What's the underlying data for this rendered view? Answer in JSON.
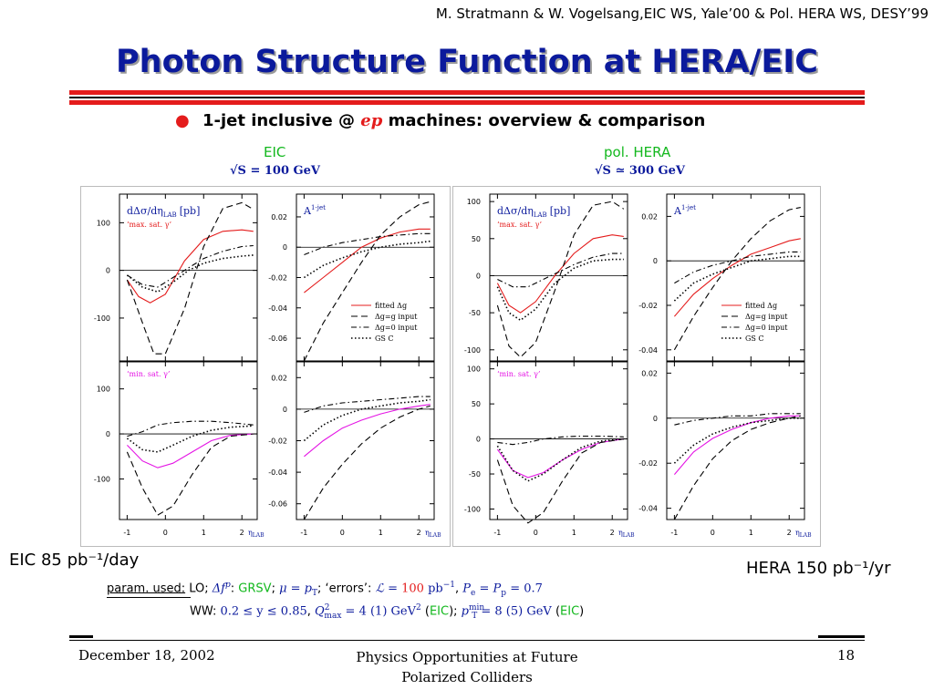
{
  "header": {
    "credit": "M. Stratmann & W. Vogelsang,EIC WS, Yale’00 & Pol. HERA WS, DESY’99",
    "title": "Photon Structure Function at HERA/EIC"
  },
  "bullet": {
    "prefix": "1-jet inclusive @",
    "ep": "ep",
    "suffix": "machines:",
    "rest_a": "overview",
    "amp": "&",
    "rest_b": "comparison"
  },
  "colors": {
    "title_blue": "#0b1a9c",
    "red": "#e41c1c",
    "green": "#13b81e",
    "magenta": "#e413e4"
  },
  "sections": {
    "eic": {
      "label": "EIC",
      "energy": "√S = 100 GeV",
      "lumi": "EIC 85 pb⁻¹/day"
    },
    "hera": {
      "label": "pol. HERA",
      "energy": "√S ≃ 300 GeV",
      "lumi": "HERA 150 pb⁻¹/yr"
    }
  },
  "params": {
    "label": "param. used:",
    "line1_lo": "LO;",
    "line1_df": "Δf",
    "line1_dfsup": "p",
    "line1_df_colon": ":",
    "line1_grsv": "GRSV",
    "line1_mu": "μ = p",
    "line1_mu_sub": "T",
    "line1_errors": "‘errors’:",
    "line1_L": "ℒ =",
    "line1_Lval": "100",
    "line1_Lunit": "pb",
    "line1_Lexp": "−1",
    "line1_P": "P",
    "line1_P_sub_e": "e",
    "line1_P_eq": "= P",
    "line1_P_sub_p": "p",
    "line1_P_val": "= 0.7",
    "line2_ww": "WW:",
    "line2_y": "0.2 ≤ y ≤ 0.85",
    "line2_Q": "Q",
    "line2_Qsup": "2",
    "line2_Qsub": "max",
    "line2_Qval": "= 4 (1) GeV",
    "line2_Qunitsup": "2",
    "line2_eic1": "EIC",
    "line2_pt": "p",
    "line2_ptsup": "min",
    "line2_ptsub": "T",
    "line2_ptval": "= 8 (5) GeV",
    "line2_eic2": "EIC"
  },
  "footer": {
    "date": "December 18, 2002",
    "talk_line1": "Physics Opportunities at Future",
    "talk_line2": "Polarized Colliders",
    "page": "18"
  },
  "chart_data": [
    {
      "type": "line",
      "id": "eic-xsec-max",
      "label": "dΔσ/dη",
      "label_sub": "LAB",
      "label_unit": "[pb]",
      "subset": "‘max. sat. γ’",
      "xlim": [
        -1.2,
        2.4
      ],
      "ylim": [
        -190,
        160
      ],
      "yticks": [
        -100,
        0,
        100
      ],
      "xticks": [
        -1,
        0,
        1,
        2
      ],
      "series": [
        {
          "style": "solid",
          "color": "#e41c1c",
          "x": [
            -1.0,
            -0.7,
            -0.4,
            0.0,
            0.5,
            1.0,
            1.5,
            2.0,
            2.3
          ],
          "y": [
            -20,
            -55,
            -68,
            -50,
            20,
            65,
            82,
            85,
            82
          ]
        },
        {
          "style": "dashed",
          "color": "#000",
          "x": [
            -1.0,
            -0.6,
            -0.3,
            0.0,
            0.5,
            1.0,
            1.5,
            2.0,
            2.3
          ],
          "y": [
            -20,
            -110,
            -175,
            -175,
            -80,
            50,
            130,
            142,
            128
          ]
        },
        {
          "style": "dashdot",
          "color": "#000",
          "x": [
            -1.0,
            -0.6,
            -0.2,
            0.2,
            0.6,
            1.0,
            1.5,
            2.0,
            2.3
          ],
          "y": [
            -10,
            -30,
            -35,
            -15,
            5,
            25,
            40,
            50,
            52
          ]
        },
        {
          "style": "dotted",
          "color": "#000",
          "x": [
            -1.0,
            -0.6,
            -0.2,
            0.2,
            0.6,
            1.0,
            1.5,
            2.0,
            2.3
          ],
          "y": [
            -10,
            -35,
            -45,
            -25,
            0,
            15,
            25,
            30,
            32
          ]
        }
      ]
    },
    {
      "type": "line",
      "id": "eic-asym-max",
      "label": "A",
      "label_sup": "1-jet",
      "xlim": [
        -1.2,
        2.4
      ],
      "ylim": [
        -0.075,
        0.035
      ],
      "yticks": [
        -0.06,
        -0.04,
        -0.02,
        0,
        0.02
      ],
      "xticks": [
        -1,
        0,
        1,
        2
      ],
      "legend": [
        "fitted Δg",
        "Δg=g input",
        "Δg=0 input",
        "GS C"
      ],
      "series": [
        {
          "style": "solid",
          "color": "#e41c1c",
          "x": [
            -1.0,
            -0.5,
            0.0,
            0.5,
            1.0,
            1.5,
            2.0,
            2.3
          ],
          "y": [
            -0.03,
            -0.02,
            -0.01,
            0.0,
            0.006,
            0.01,
            0.012,
            0.012
          ]
        },
        {
          "style": "dashed",
          "color": "#000",
          "x": [
            -1.0,
            -0.5,
            0.0,
            0.5,
            1.0,
            1.5,
            2.0,
            2.3
          ],
          "y": [
            -0.075,
            -0.05,
            -0.03,
            -0.01,
            0.008,
            0.02,
            0.028,
            0.03
          ]
        },
        {
          "style": "dashdot",
          "color": "#000",
          "x": [
            -1.0,
            -0.5,
            0.0,
            0.5,
            1.0,
            1.5,
            2.0,
            2.3
          ],
          "y": [
            -0.005,
            0.0,
            0.003,
            0.005,
            0.007,
            0.008,
            0.009,
            0.009
          ]
        },
        {
          "style": "dotted",
          "color": "#000",
          "x": [
            -1.0,
            -0.5,
            0.0,
            0.5,
            1.0,
            1.5,
            2.0,
            2.3
          ],
          "y": [
            -0.02,
            -0.012,
            -0.007,
            -0.003,
            0.0,
            0.002,
            0.003,
            0.004
          ]
        }
      ]
    },
    {
      "type": "line",
      "id": "eic-xsec-min",
      "subset": "‘min. sat. γ’",
      "xlim": [
        -1.2,
        2.4
      ],
      "ylim": [
        -190,
        160
      ],
      "yticks": [
        -100,
        0,
        100
      ],
      "xticks": [
        -1,
        0,
        1,
        2
      ],
      "series": [
        {
          "style": "solid",
          "color": "#e413e4",
          "x": [
            -1.0,
            -0.6,
            -0.2,
            0.2,
            0.7,
            1.2,
            1.7,
            2.3
          ],
          "y": [
            -25,
            -60,
            -75,
            -65,
            -40,
            -15,
            -3,
            0
          ]
        },
        {
          "style": "dashed",
          "color": "#000",
          "x": [
            -1.0,
            -0.6,
            -0.2,
            0.2,
            0.7,
            1.2,
            1.7,
            2.3
          ],
          "y": [
            -40,
            -120,
            -180,
            -160,
            -90,
            -30,
            -5,
            0
          ]
        },
        {
          "style": "dashdot",
          "color": "#000",
          "x": [
            -1.0,
            -0.6,
            -0.2,
            0.2,
            0.7,
            1.2,
            1.7,
            2.3
          ],
          "y": [
            -5,
            5,
            20,
            25,
            28,
            28,
            25,
            20
          ]
        },
        {
          "style": "dotted",
          "color": "#000",
          "x": [
            -1.0,
            -0.6,
            -0.2,
            0.2,
            0.7,
            1.2,
            1.7,
            2.3
          ],
          "y": [
            -10,
            -35,
            -40,
            -25,
            -5,
            8,
            15,
            18
          ]
        }
      ]
    },
    {
      "type": "line",
      "id": "eic-asym-min",
      "xlim": [
        -1.2,
        2.4
      ],
      "ylim": [
        -0.07,
        0.03
      ],
      "yticks": [
        -0.06,
        -0.04,
        -0.02,
        0,
        0.02
      ],
      "xticks": [
        -1,
        0,
        1,
        2
      ],
      "series": [
        {
          "style": "solid",
          "color": "#e413e4",
          "x": [
            -1.0,
            -0.5,
            0.0,
            0.5,
            1.0,
            1.5,
            2.0,
            2.3
          ],
          "y": [
            -0.03,
            -0.02,
            -0.012,
            -0.007,
            -0.003,
            0.0,
            0.002,
            0.003
          ]
        },
        {
          "style": "dashed",
          "color": "#000",
          "x": [
            -1.0,
            -0.5,
            0.0,
            0.5,
            1.0,
            1.5,
            2.0,
            2.3
          ],
          "y": [
            -0.07,
            -0.05,
            -0.035,
            -0.022,
            -0.012,
            -0.005,
            0.0,
            0.002
          ]
        },
        {
          "style": "dashdot",
          "color": "#000",
          "x": [
            -1.0,
            -0.5,
            0.0,
            0.5,
            1.0,
            1.5,
            2.0,
            2.3
          ],
          "y": [
            -0.002,
            0.002,
            0.004,
            0.005,
            0.006,
            0.007,
            0.008,
            0.008
          ]
        },
        {
          "style": "dotted",
          "color": "#000",
          "x": [
            -1.0,
            -0.5,
            0.0,
            0.5,
            1.0,
            1.5,
            2.0,
            2.3
          ],
          "y": [
            -0.02,
            -0.01,
            -0.004,
            0.0,
            0.002,
            0.004,
            0.005,
            0.006
          ]
        }
      ]
    },
    {
      "type": "line",
      "id": "hera-xsec-max",
      "label": "dΔσ/dη",
      "label_sub": "LAB",
      "label_unit": "[pb]",
      "subset": "‘max. sat. γ’",
      "xlim": [
        -1.2,
        2.4
      ],
      "ylim": [
        -115,
        110
      ],
      "yticks": [
        -100,
        -50,
        0,
        50,
        100
      ],
      "xticks": [
        -1,
        0,
        1,
        2
      ],
      "series": [
        {
          "style": "solid",
          "color": "#e41c1c",
          "x": [
            -1.0,
            -0.7,
            -0.4,
            0.0,
            0.5,
            1.0,
            1.5,
            2.0,
            2.3
          ],
          "y": [
            -10,
            -40,
            -50,
            -35,
            0,
            30,
            50,
            55,
            53
          ]
        },
        {
          "style": "dashed",
          "color": "#000",
          "x": [
            -1.0,
            -0.7,
            -0.4,
            0.0,
            0.5,
            1.0,
            1.5,
            2.0,
            2.3
          ],
          "y": [
            -40,
            -95,
            -110,
            -90,
            -20,
            55,
            95,
            100,
            90
          ]
        },
        {
          "style": "dashdot",
          "color": "#000",
          "x": [
            -1.0,
            -0.6,
            -0.2,
            0.2,
            0.6,
            1.0,
            1.5,
            2.0,
            2.3
          ],
          "y": [
            -5,
            -15,
            -15,
            -5,
            5,
            15,
            25,
            30,
            30
          ]
        },
        {
          "style": "dotted",
          "color": "#000",
          "x": [
            -1.0,
            -0.7,
            -0.4,
            0.0,
            0.5,
            1.0,
            1.5,
            2.0,
            2.3
          ],
          "y": [
            -15,
            -50,
            -60,
            -45,
            -10,
            10,
            20,
            22,
            22
          ]
        }
      ]
    },
    {
      "type": "line",
      "id": "hera-asym-max",
      "label": "A",
      "label_sup": "1-jet",
      "xlim": [
        -1.2,
        2.4
      ],
      "ylim": [
        -0.045,
        0.03
      ],
      "yticks": [
        -0.04,
        -0.02,
        0,
        0.02
      ],
      "xticks": [
        -1,
        0,
        1,
        2
      ],
      "legend": [
        "fitted Δg",
        "Δg=g input",
        "Δg=0 input",
        "GS C"
      ],
      "series": [
        {
          "style": "solid",
          "color": "#e41c1c",
          "x": [
            -1.0,
            -0.5,
            0.0,
            0.5,
            1.0,
            1.5,
            2.0,
            2.3
          ],
          "y": [
            -0.025,
            -0.015,
            -0.008,
            -0.002,
            0.003,
            0.006,
            0.009,
            0.01
          ]
        },
        {
          "style": "dashed",
          "color": "#000",
          "x": [
            -1.0,
            -0.5,
            0.0,
            0.5,
            1.0,
            1.5,
            2.0,
            2.3
          ],
          "y": [
            -0.04,
            -0.025,
            -0.012,
            0.0,
            0.01,
            0.018,
            0.023,
            0.024
          ]
        },
        {
          "style": "dashdot",
          "color": "#000",
          "x": [
            -1.0,
            -0.5,
            0.0,
            0.5,
            1.0,
            1.5,
            2.0,
            2.3
          ],
          "y": [
            -0.01,
            -0.005,
            -0.002,
            0.0,
            0.002,
            0.003,
            0.004,
            0.004
          ]
        },
        {
          "style": "dotted",
          "color": "#000",
          "x": [
            -1.0,
            -0.5,
            0.0,
            0.5,
            1.0,
            1.5,
            2.0,
            2.3
          ],
          "y": [
            -0.018,
            -0.01,
            -0.006,
            -0.003,
            0.0,
            0.001,
            0.002,
            0.002
          ]
        }
      ]
    },
    {
      "type": "line",
      "id": "hera-xsec-min",
      "subset": "‘min. sat. γ’",
      "xlim": [
        -1.2,
        2.4
      ],
      "ylim": [
        -115,
        110
      ],
      "yticks": [
        -100,
        -50,
        0,
        50,
        100
      ],
      "xticks": [
        -1,
        0,
        1,
        2
      ],
      "series": [
        {
          "style": "solid",
          "color": "#e413e4",
          "x": [
            -1.0,
            -0.6,
            -0.2,
            0.2,
            0.7,
            1.2,
            1.7,
            2.3
          ],
          "y": [
            -15,
            -45,
            -55,
            -48,
            -30,
            -15,
            -5,
            0
          ]
        },
        {
          "style": "dashed",
          "color": "#000",
          "x": [
            -1.0,
            -0.6,
            -0.2,
            0.2,
            0.7,
            1.2,
            1.7,
            2.3
          ],
          "y": [
            -30,
            -95,
            -120,
            -105,
            -60,
            -20,
            -5,
            0
          ]
        },
        {
          "style": "dashdot",
          "color": "#000",
          "x": [
            -1.0,
            -0.6,
            -0.2,
            0.2,
            0.7,
            1.2,
            1.7,
            2.3
          ],
          "y": [
            -5,
            -8,
            -5,
            0,
            3,
            4,
            4,
            3
          ]
        },
        {
          "style": "dotted",
          "color": "#000",
          "x": [
            -1.0,
            -0.6,
            -0.2,
            0.2,
            0.7,
            1.2,
            1.7,
            2.3
          ],
          "y": [
            -10,
            -45,
            -60,
            -50,
            -30,
            -12,
            -3,
            0
          ]
        }
      ]
    },
    {
      "type": "line",
      "id": "hera-asym-min",
      "xlim": [
        -1.2,
        2.4
      ],
      "ylim": [
        -0.045,
        0.025
      ],
      "yticks": [
        -0.04,
        -0.02,
        0,
        0.02
      ],
      "xticks": [
        -1,
        0,
        1,
        2
      ],
      "series": [
        {
          "style": "solid",
          "color": "#e413e4",
          "x": [
            -1.0,
            -0.5,
            0.0,
            0.5,
            1.0,
            1.5,
            2.0,
            2.3
          ],
          "y": [
            -0.025,
            -0.015,
            -0.009,
            -0.005,
            -0.002,
            0.0,
            0.001,
            0.001
          ]
        },
        {
          "style": "dashed",
          "color": "#000",
          "x": [
            -1.0,
            -0.5,
            0.0,
            0.5,
            1.0,
            1.5,
            2.0,
            2.3
          ],
          "y": [
            -0.045,
            -0.03,
            -0.018,
            -0.01,
            -0.005,
            -0.002,
            0.0,
            0.001
          ]
        },
        {
          "style": "dashdot",
          "color": "#000",
          "x": [
            -1.0,
            -0.5,
            0.0,
            0.5,
            1.0,
            1.5,
            2.0,
            2.3
          ],
          "y": [
            -0.003,
            -0.001,
            0.0,
            0.001,
            0.001,
            0.002,
            0.002,
            0.002
          ]
        },
        {
          "style": "dotted",
          "color": "#000",
          "x": [
            -1.0,
            -0.5,
            0.0,
            0.5,
            1.0,
            1.5,
            2.0,
            2.3
          ],
          "y": [
            -0.02,
            -0.012,
            -0.007,
            -0.004,
            -0.002,
            -0.001,
            0.0,
            0.0
          ]
        }
      ]
    }
  ]
}
